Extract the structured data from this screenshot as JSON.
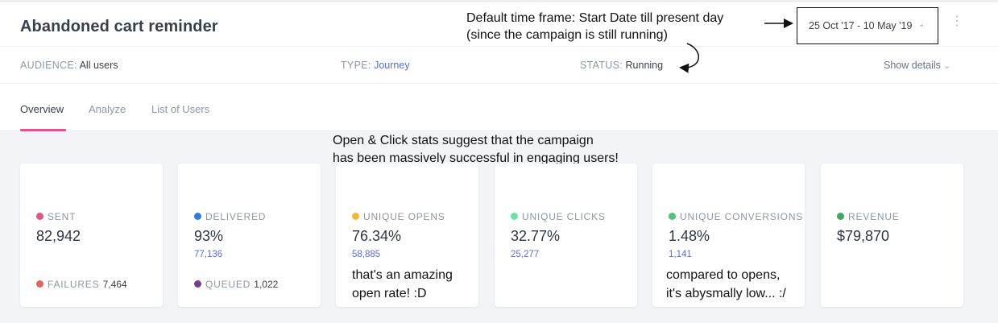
{
  "header": {
    "title": "Abandoned cart reminder",
    "date_range": "25 Oct '17 - 10 May '19"
  },
  "annotations": {
    "timeframe_line1": "Default time frame: Start Date till present day",
    "timeframe_line2": "(since the campaign is still running)",
    "stats_line1": "Open & Click stats suggest that the campaign",
    "stats_line2": "has been massively successful in engaging users!",
    "opens_line1": "that's an amazing",
    "opens_line2": "open rate! :D",
    "conversions_line1": "compared to opens,",
    "conversions_line2": "it's abysmally low... :/"
  },
  "meta": {
    "audience_key": "AUDIENCE:",
    "audience_value": "All users",
    "type_key": "TYPE:",
    "type_value": "Journey",
    "status_key": "STATUS:",
    "status_value": "Running",
    "show_details": "Show details"
  },
  "tabs": [
    {
      "label": "Overview",
      "active": true
    },
    {
      "label": "Analyze",
      "active": false
    },
    {
      "label": "List of Users",
      "active": false
    }
  ],
  "cards": [
    {
      "label": "SENT",
      "dot_color": "#e8508a",
      "value": "82,942",
      "sub": "",
      "foot_label": "FAILURES",
      "foot_value": "7,464",
      "foot_dot_color": "#e8615f"
    },
    {
      "label": "DELIVERED",
      "dot_color": "#2f7de1",
      "value": "93%",
      "sub": "77,136",
      "foot_label": "QUEUED",
      "foot_value": "1,022",
      "foot_dot_color": "#7a3c8c"
    },
    {
      "label": "UNIQUE OPENS",
      "dot_color": "#f5b82e",
      "value": "76.34%",
      "sub": "58,885"
    },
    {
      "label": "UNIQUE CLICKS",
      "dot_color": "#6ee3a0",
      "value": "32.77%",
      "sub": "25,277"
    },
    {
      "label": "UNIQUE CONVERSIONS",
      "dot_color": "#4fc47a",
      "value": "1.48%",
      "sub": "1,141"
    },
    {
      "label": "REVENUE",
      "dot_color": "#3aaa5c",
      "value": "$79,870",
      "sub": ""
    }
  ]
}
